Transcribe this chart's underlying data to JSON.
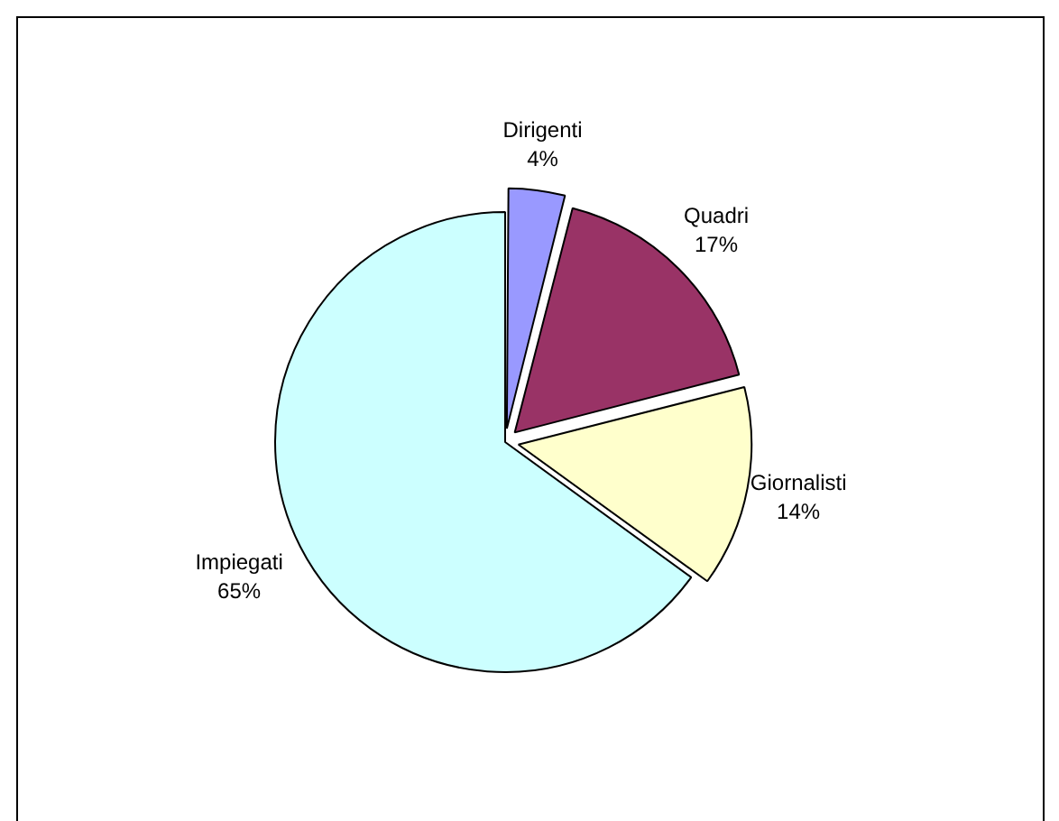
{
  "chart_data": {
    "type": "pie",
    "categories": [
      "Dirigenti",
      "Quadri",
      "Giornalisti",
      "Impiegati"
    ],
    "values": [
      4,
      17,
      14,
      65
    ],
    "value_labels": [
      "4%",
      "17%",
      "14%",
      "65%"
    ],
    "colors": [
      "#9999ff",
      "#993366",
      "#ffffcc",
      "#ccffff"
    ],
    "legend": false
  }
}
